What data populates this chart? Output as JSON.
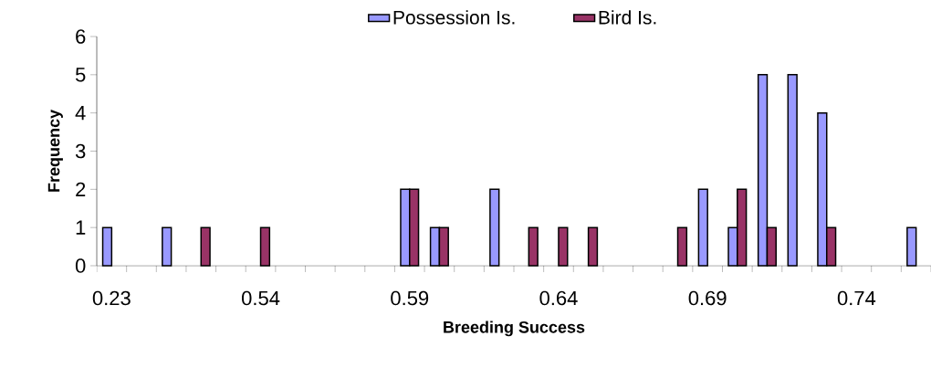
{
  "chart_data": {
    "type": "bar",
    "xlabel": "Breeding Success",
    "ylabel": "Frequency",
    "categories": [
      "0.23",
      null,
      null,
      null,
      null,
      "0.54",
      null,
      null,
      null,
      null,
      "0.59",
      null,
      null,
      null,
      null,
      "0.64",
      null,
      null,
      null,
      null,
      "0.69",
      null,
      null,
      null,
      null,
      "0.74",
      null,
      null
    ],
    "series": [
      {
        "name": "Possession Is.",
        "color": "#9999ff",
        "values": [
          1,
          0,
          1,
          0,
          0,
          0,
          0,
          0,
          0,
          0,
          2,
          1,
          0,
          2,
          0,
          0,
          0,
          0,
          0,
          0,
          2,
          1,
          5,
          5,
          4,
          0,
          0,
          1
        ]
      },
      {
        "name": "Bird Is.",
        "color": "#993366",
        "values": [
          0,
          0,
          0,
          1,
          0,
          1,
          0,
          0,
          0,
          0,
          2,
          1,
          0,
          0,
          1,
          1,
          1,
          0,
          0,
          1,
          0,
          2,
          1,
          0,
          1,
          0,
          0,
          0
        ]
      }
    ],
    "ylim": [
      0,
      6
    ],
    "yticks": [
      0,
      1,
      2,
      3,
      4,
      5,
      6
    ],
    "legend": "top"
  }
}
